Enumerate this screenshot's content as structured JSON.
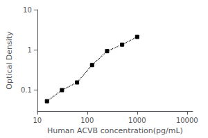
{
  "chart_data": {
    "type": "line",
    "x": [
      15.6,
      31.2,
      62.5,
      125,
      250,
      500,
      1000
    ],
    "values": [
      0.053,
      0.1,
      0.155,
      0.42,
      0.93,
      1.35,
      2.1
    ],
    "color": "black",
    "marker": "square",
    "line_style": "dotted",
    "xlabel": "Human ACVB concentration(pg/mL)",
    "ylabel": "Optical Density",
    "xlim": [
      10,
      13000
    ],
    "ylim": [
      0.03,
      10
    ],
    "xticks": [
      10,
      100,
      1000,
      10000
    ],
    "yticks": [
      0.1,
      1,
      10
    ],
    "log": true,
    "grid": false
  }
}
